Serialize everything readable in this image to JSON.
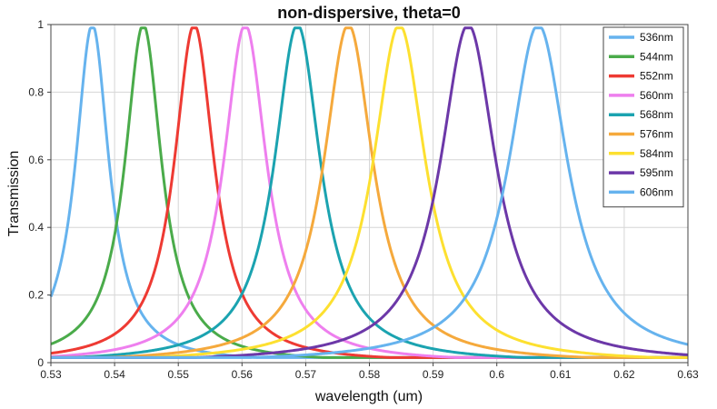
{
  "chart_data": {
    "type": "line",
    "title": "non-dispersive, theta=0",
    "xlabel": "wavelength (um)",
    "ylabel": "Transmission",
    "xlim": [
      0.53,
      0.63
    ],
    "ylim": [
      0,
      1
    ],
    "x_ticks": [
      "0.53",
      "0.54",
      "0.55",
      "0.56",
      "0.57",
      "0.58",
      "0.59",
      "0.6",
      "0.61",
      "0.62",
      "0.63"
    ],
    "y_ticks": [
      "0",
      "0.2",
      "0.4",
      "0.6",
      "0.8",
      "1"
    ],
    "grid": true,
    "legend_position": "top-right",
    "series": [
      {
        "name": "536nm",
        "peak": 0.5365,
        "color": "#66b3ee"
      },
      {
        "name": "544nm",
        "peak": 0.5445,
        "color": "#4aab4a"
      },
      {
        "name": "552nm",
        "peak": 0.5525,
        "color": "#ee3a33"
      },
      {
        "name": "560nm",
        "peak": 0.5605,
        "color": "#ee7fee"
      },
      {
        "name": "568nm",
        "peak": 0.5687,
        "color": "#1ba3b0"
      },
      {
        "name": "576nm",
        "peak": 0.5767,
        "color": "#f5a93c"
      },
      {
        "name": "584nm",
        "peak": 0.5847,
        "color": "#fde030"
      },
      {
        "name": "595nm",
        "peak": 0.5955,
        "color": "#6c38a8"
      },
      {
        "name": "606nm",
        "peak": 0.6065,
        "color": "#66b3ee"
      }
    ]
  }
}
